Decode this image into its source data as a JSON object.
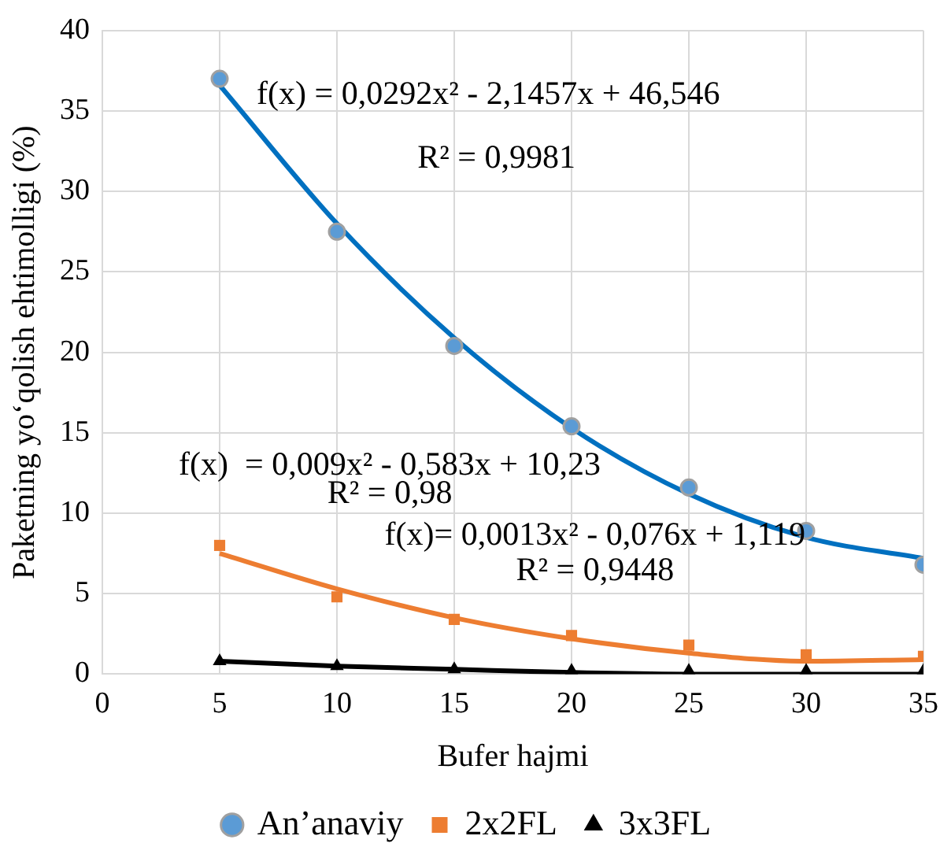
{
  "chart_data": {
    "type": "scatter",
    "xlabel": "Bufer hajmi",
    "ylabel": "Paketning yo‘qolish ehtimolligi (%)",
    "x": [
      5,
      10,
      15,
      20,
      25,
      30,
      35
    ],
    "xlim": [
      0,
      35
    ],
    "xticks": [
      0,
      5,
      10,
      15,
      20,
      25,
      30,
      35
    ],
    "ylim": [
      0,
      40
    ],
    "yticks": [
      0,
      5,
      10,
      15,
      20,
      25,
      30,
      35,
      40
    ],
    "grid": true,
    "legend": "bottom",
    "series": [
      {
        "name": "An’anaviy",
        "color": "#5b9bd5",
        "marker": "circle",
        "values": [
          37,
          27.5,
          20.4,
          15.4,
          11.6,
          8.9,
          6.8
        ]
      },
      {
        "name": "2x2FL",
        "color": "#ed7d31",
        "marker": "square",
        "values": [
          8,
          4.8,
          3.4,
          2.4,
          1.8,
          1.2,
          1.1
        ]
      },
      {
        "name": "3x3FL",
        "color": "#000000",
        "marker": "triangle",
        "values": [
          0.8,
          0.5,
          0.3,
          0.2,
          0.2,
          0.2,
          0.2
        ]
      },
      {
        "type": "line",
        "color": "#0070c0",
        "marker": "none",
        "x": [
          5,
          10,
          15,
          20,
          25,
          30,
          35
        ],
        "values": [
          36.6,
          28,
          20.9,
          15.3,
          11.2,
          8.5,
          7.2
        ]
      },
      {
        "type": "line",
        "color": "#ed7d31",
        "marker": "none",
        "x": [
          5,
          10,
          15,
          20,
          25,
          30,
          35
        ],
        "values": [
          7.5,
          5.3,
          3.5,
          2.2,
          1.3,
          0.8,
          0.9
        ]
      },
      {
        "type": "line",
        "color": "#000000",
        "marker": "none",
        "x": [
          5,
          10,
          15,
          20,
          25,
          30,
          35
        ],
        "values": [
          0.8,
          0.5,
          0.3,
          0.1,
          0,
          0,
          0
        ]
      }
    ],
    "annotations": [
      "f(x) = 0,0292x² - 2,1457x + 46,546",
      "R² = 0,9981",
      "f(x)  = 0,009x² - 0,583x + 10,23",
      "R² = 0,98",
      "f(x)= 0,0013x² - 0,076x + 1,119",
      "R² = 0,9448"
    ]
  }
}
